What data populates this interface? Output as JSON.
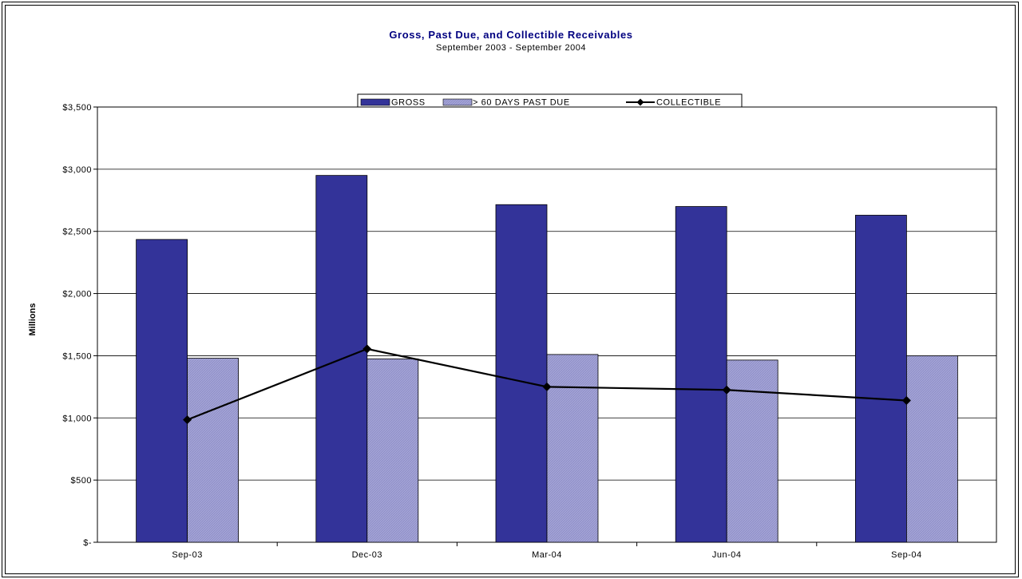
{
  "chart_data": {
    "type": "bar",
    "title": "Gross, Past Due, and Collectible Receivables",
    "subtitle": "September 2003 - September 2004",
    "ylabel": "Millions",
    "xlabel": "",
    "categories": [
      "Sep-03",
      "Dec-03",
      "Mar-04",
      "Jun-04",
      "Sep-04"
    ],
    "ylim": [
      0,
      3500
    ],
    "yticks": [
      0,
      500,
      1000,
      1500,
      2000,
      2500,
      3000,
      3500
    ],
    "ytick_labels": [
      "$-",
      "$500",
      "$1,000",
      "$1,500",
      "$2,000",
      "$2,500",
      "$3,000",
      "$3,500"
    ],
    "grid": true,
    "legend_position": "top",
    "series": [
      {
        "name": "GROSS",
        "type": "bar",
        "color": "#333399",
        "values": [
          2435,
          2950,
          2715,
          2700,
          2630
        ]
      },
      {
        "name": "> 60 DAYS PAST DUE",
        "type": "bar",
        "color": "#9999cc",
        "values": [
          1480,
          1475,
          1510,
          1465,
          1500
        ]
      },
      {
        "name": "COLLECTIBLE",
        "type": "line",
        "color": "#000000",
        "values": [
          985,
          1555,
          1250,
          1225,
          1140
        ]
      }
    ]
  }
}
